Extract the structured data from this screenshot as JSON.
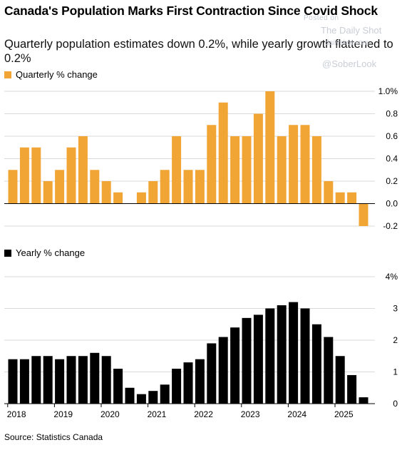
{
  "header": {
    "title": "Canada's Population Marks First Contraction Since Covid Shock",
    "subtitle": "Quarterly population estimates down 0.2%, while yearly growth flattened to 0.2%"
  },
  "watermark": {
    "posted": "Posted on",
    "name": "The Daily Shot",
    "url": "dailyshot.com",
    "handle": "@SoberLook"
  },
  "source": "Source: Statistics Canada",
  "colors": {
    "quarterly": "#f0a535",
    "yearly": "#000000",
    "grid": "#d9d9d9",
    "axis": "#000000"
  },
  "chart_data": [
    {
      "type": "bar",
      "legend": "Quarterly % change",
      "series": [
        {
          "name": "Quarterly % change",
          "values": [
            0.3,
            0.5,
            0.5,
            0.2,
            0.3,
            0.5,
            0.6,
            0.3,
            0.2,
            0.1,
            0.0,
            0.1,
            0.2,
            0.3,
            0.6,
            0.3,
            0.3,
            0.7,
            0.9,
            0.6,
            0.6,
            0.8,
            1.0,
            0.6,
            0.7,
            0.7,
            0.6,
            0.2,
            0.1,
            0.1,
            -0.2
          ]
        }
      ],
      "x_start": "2018 Q1",
      "ylim": [
        -0.2,
        1.0
      ],
      "yticks": [
        1.0,
        0.8,
        0.6,
        0.4,
        0.2,
        0.0,
        -0.2
      ],
      "ytick_labels": [
        "1.0%",
        "0.8",
        "0.6",
        "0.4",
        "0.2",
        "0.0",
        "-0.2"
      ],
      "grid": true
    },
    {
      "type": "bar",
      "legend": "Yearly % change",
      "series": [
        {
          "name": "Yearly % change",
          "values": [
            1.4,
            1.4,
            1.5,
            1.5,
            1.4,
            1.5,
            1.5,
            1.6,
            1.5,
            1.1,
            0.5,
            0.3,
            0.4,
            0.6,
            1.1,
            1.3,
            1.4,
            1.9,
            2.1,
            2.4,
            2.7,
            2.8,
            3.0,
            3.1,
            3.2,
            3.0,
            2.5,
            2.1,
            1.5,
            0.9,
            0.2
          ]
        }
      ],
      "x_start": "2018 Q1",
      "ylim": [
        0,
        4
      ],
      "yticks": [
        4,
        3,
        2,
        1,
        0
      ],
      "ytick_labels": [
        "4%",
        "3",
        "2",
        "1",
        "0"
      ],
      "xtick_labels": [
        "2018",
        "2019",
        "2020",
        "2021",
        "2022",
        "2023",
        "2024",
        "2025"
      ],
      "grid": true
    }
  ]
}
